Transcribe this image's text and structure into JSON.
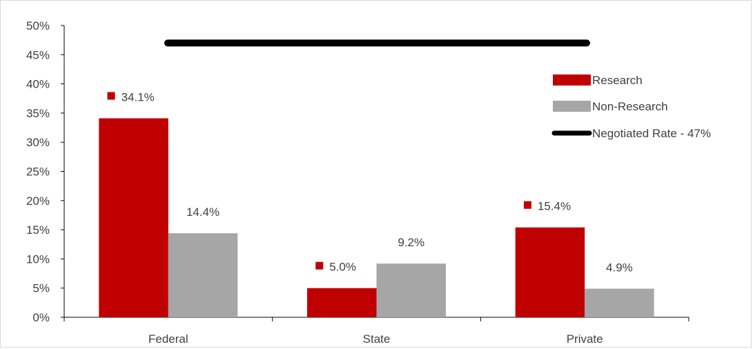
{
  "chart_data": {
    "type": "bar",
    "title": "",
    "xlabel": "",
    "ylabel": "",
    "categories": [
      "Federal",
      "State",
      "Private"
    ],
    "series": [
      {
        "name": "Research",
        "values": [
          34.1,
          5.0,
          15.4
        ],
        "labels": [
          "34.1%",
          "5.0%",
          "15.4%"
        ],
        "color": "#c00000"
      },
      {
        "name": "Non-Research",
        "values": [
          14.4,
          9.2,
          4.9
        ],
        "labels": [
          "14.4%",
          "9.2%",
          "4.9%"
        ],
        "color": "#a6a6a6"
      }
    ],
    "reference_line": {
      "name": "Negotiated Rate - 47%",
      "value": 47,
      "color": "#000000"
    },
    "ylim": [
      0,
      50
    ],
    "y_ticks": [
      0,
      5,
      10,
      15,
      20,
      25,
      30,
      35,
      40,
      45,
      50
    ],
    "y_tick_labels": [
      "0%",
      "5%",
      "10%",
      "15%",
      "20%",
      "25%",
      "30%",
      "35%",
      "40%",
      "45%",
      "50%"
    ],
    "grid": false,
    "legend_position": "top-right"
  }
}
